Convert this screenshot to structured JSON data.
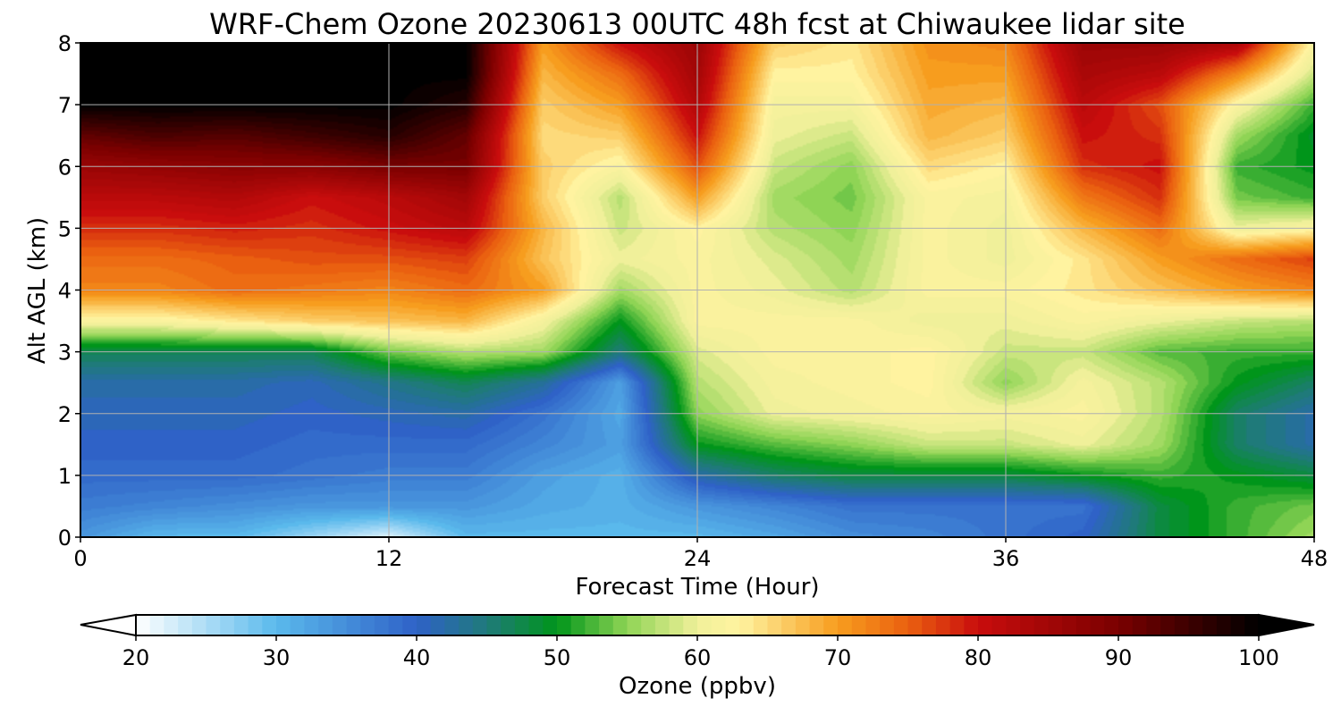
{
  "chart_data": {
    "type": "heatmap",
    "title": "WRF-Chem Ozone  20230613 00UTC 48h fcst at Chiwaukee lidar site",
    "xlabel": "Forecast Time (Hour)",
    "ylabel": "Alt AGL (km)",
    "xlim": [
      0,
      48
    ],
    "ylim": [
      0,
      8
    ],
    "x_ticks": [
      "0",
      "12",
      "24",
      "36",
      "48"
    ],
    "y_ticks": [
      "0",
      "1",
      "2",
      "3",
      "4",
      "5",
      "6",
      "7",
      "8"
    ],
    "grid": true,
    "colorbar": {
      "label": "Ozone  (ppbv)",
      "range": [
        20,
        100
      ],
      "extend": "both",
      "ticks": [
        "20",
        "30",
        "40",
        "50",
        "60",
        "70",
        "80",
        "90",
        "100"
      ],
      "stops": [
        [
          20,
          "#ffffff"
        ],
        [
          30,
          "#5ab9ec"
        ],
        [
          40,
          "#2f62c7"
        ],
        [
          45,
          "#1f7a7a"
        ],
        [
          50,
          "#00951a"
        ],
        [
          55,
          "#8fd455"
        ],
        [
          60,
          "#f0f09a"
        ],
        [
          63,
          "#fff3a0"
        ],
        [
          70,
          "#f79d1e"
        ],
        [
          75,
          "#ea6010"
        ],
        [
          80,
          "#c90d0d"
        ],
        [
          90,
          "#7a0000"
        ],
        [
          100,
          "#000000"
        ]
      ]
    },
    "x_hours": [
      0,
      3,
      6,
      9,
      12,
      15,
      18,
      21,
      24,
      27,
      30,
      33,
      36,
      39,
      42,
      45,
      48
    ],
    "z_km": [
      0,
      0.5,
      1,
      1.5,
      2,
      2.5,
      3,
      3.5,
      4,
      4.5,
      5,
      5.5,
      6,
      6.5,
      7,
      7.5,
      8
    ],
    "ozone_ppbv": [
      [
        34,
        30,
        30,
        26,
        22,
        30,
        30,
        30,
        30,
        32,
        35,
        36,
        38,
        40,
        48,
        52,
        56
      ],
      [
        37,
        36,
        35,
        34,
        34,
        34,
        32,
        31,
        34,
        36,
        38,
        38,
        38,
        38,
        48,
        52,
        54
      ],
      [
        39,
        39,
        39,
        38,
        37,
        37,
        33,
        31,
        42,
        46,
        48,
        48,
        48,
        50,
        52,
        50,
        48
      ],
      [
        40,
        40,
        40,
        39,
        39,
        39,
        36,
        33,
        50,
        53,
        55,
        58,
        58,
        60,
        56,
        46,
        42
      ],
      [
        41,
        41,
        41,
        40,
        41,
        42,
        38,
        32,
        55,
        60,
        61,
        62,
        61,
        62,
        57,
        46,
        42
      ],
      [
        42,
        42,
        42,
        41,
        44,
        47,
        43,
        33,
        57,
        61,
        62,
        63,
        55,
        61,
        57,
        50,
        46
      ],
      [
        47,
        47,
        47,
        47,
        54,
        57,
        56,
        45,
        59,
        62,
        62,
        63,
        58,
        58,
        53,
        52,
        52
      ],
      [
        62,
        62,
        64,
        66,
        67,
        68,
        61,
        50,
        62,
        62,
        62,
        60,
        60,
        62,
        60,
        58,
        57
      ],
      [
        72,
        72,
        74,
        73,
        72,
        74,
        70,
        56,
        62,
        60,
        57,
        62,
        62,
        64,
        67,
        70,
        72
      ],
      [
        74,
        74,
        75,
        76,
        76,
        77,
        67,
        60,
        62,
        59,
        56,
        62,
        60,
        64,
        70,
        74,
        77
      ],
      [
        78,
        78,
        79,
        78,
        80,
        82,
        68,
        58,
        63,
        57,
        55,
        62,
        60,
        68,
        74,
        60,
        62
      ],
      [
        82,
        82,
        83,
        80,
        82,
        85,
        66,
        57,
        70,
        56,
        54,
        62,
        61,
        73,
        78,
        54,
        52
      ],
      [
        86,
        87,
        88,
        88,
        90,
        90,
        66,
        62,
        76,
        58,
        55,
        65,
        63,
        78,
        80,
        52,
        50
      ],
      [
        92,
        94,
        93,
        95,
        97,
        92,
        65,
        66,
        80,
        60,
        58,
        68,
        66,
        80,
        78,
        56,
        49
      ],
      [
        100,
        100,
        100,
        100,
        100,
        97,
        66,
        70,
        83,
        61,
        61,
        69,
        68,
        82,
        76,
        62,
        52
      ],
      [
        100,
        100,
        100,
        100,
        100,
        100,
        68,
        74,
        85,
        63,
        63,
        70,
        70,
        84,
        82,
        72,
        58
      ],
      [
        100,
        100,
        100,
        100,
        100,
        100,
        70,
        80,
        86,
        66,
        64,
        71,
        72,
        86,
        86,
        84,
        62
      ]
    ]
  }
}
